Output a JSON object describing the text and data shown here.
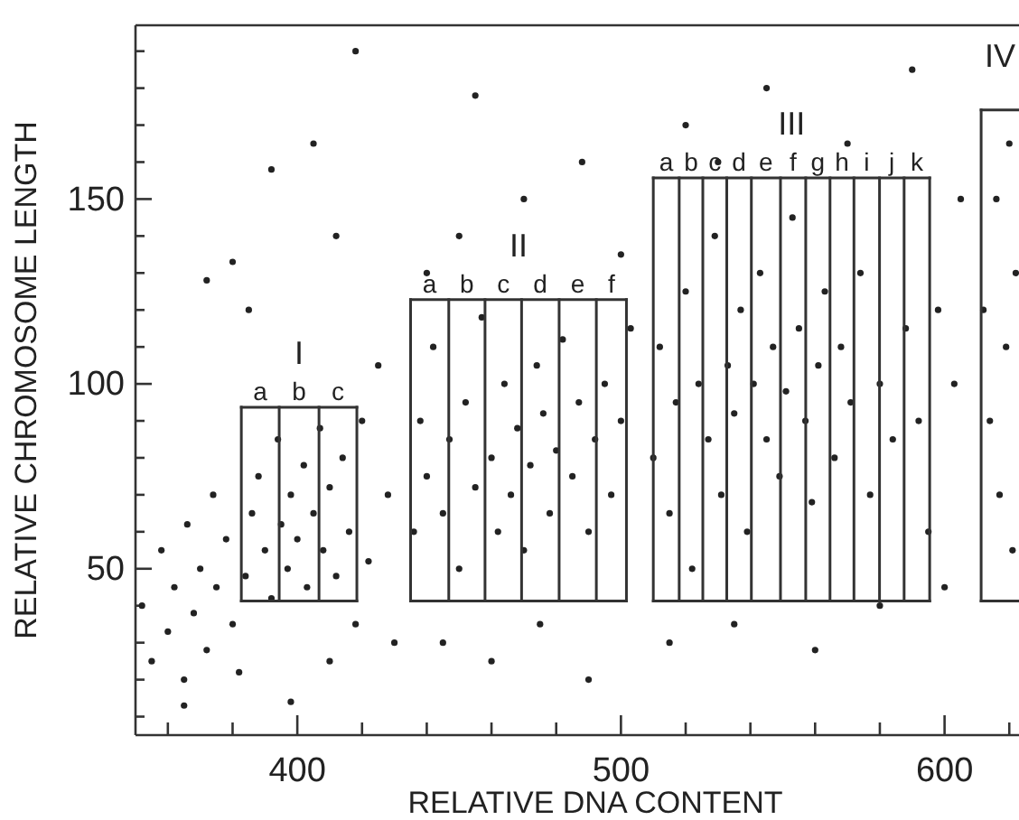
{
  "chart_data": {
    "type": "scatter",
    "xlabel": "RELATIVE DNA CONTENT",
    "ylabel": "RELATIVE CHROMOSOME LENGTH",
    "xlim": [
      350,
      623
    ],
    "ylim": [
      5,
      197
    ],
    "xticks": [
      {
        "value": 360,
        "label": null
      },
      {
        "value": 380,
        "label": null
      },
      400,
      {
        "value": 420,
        "label": null
      },
      {
        "value": 440,
        "label": null
      },
      {
        "value": 460,
        "label": null
      },
      {
        "value": 480,
        "label": null
      },
      500,
      {
        "value": 520,
        "label": null
      },
      {
        "value": 540,
        "label": null
      },
      {
        "value": 560,
        "label": null
      },
      {
        "value": 580,
        "label": null
      },
      600,
      {
        "value": 620,
        "label": null
      }
    ],
    "yticks": [
      {
        "value": 10,
        "label": null
      },
      {
        "value": 20,
        "label": null
      },
      {
        "value": 30,
        "label": null
      },
      {
        "value": 40,
        "label": null
      },
      50,
      {
        "value": 60,
        "label": null
      },
      {
        "value": 70,
        "label": null
      },
      {
        "value": 80,
        "label": null
      },
      {
        "value": 90,
        "label": null
      },
      100,
      {
        "value": 110,
        "label": null
      },
      {
        "value": 120,
        "label": null
      },
      {
        "value": 130,
        "label": null
      },
      {
        "value": 140,
        "label": null
      },
      150,
      {
        "value": 160,
        "label": null
      },
      {
        "value": 170,
        "label": null
      },
      {
        "value": 180,
        "label": null
      },
      {
        "value": 190,
        "label": null
      }
    ],
    "series": [
      {
        "color": "#222222",
        "marker": "circle",
        "x": [
          352,
          355,
          358,
          360,
          362,
          365,
          366,
          368,
          370,
          372,
          374,
          375,
          378,
          380,
          382,
          384,
          386,
          388,
          390,
          392,
          394,
          395,
          397,
          398,
          400,
          402,
          403,
          405,
          407,
          408,
          410,
          412,
          414,
          416,
          418,
          420,
          422,
          425,
          428,
          430,
          385,
          380,
          392,
          405,
          412,
          418,
          372,
          398,
          410,
          365,
          436,
          438,
          440,
          442,
          445,
          447,
          450,
          452,
          455,
          457,
          460,
          462,
          464,
          466,
          468,
          470,
          472,
          474,
          476,
          478,
          480,
          482,
          485,
          487,
          490,
          492,
          495,
          497,
          500,
          503,
          445,
          460,
          475,
          490,
          450,
          470,
          488,
          500,
          455,
          440,
          510,
          512,
          515,
          517,
          520,
          522,
          524,
          527,
          529,
          531,
          533,
          535,
          537,
          539,
          541,
          543,
          545,
          547,
          549,
          551,
          553,
          555,
          557,
          559,
          561,
          563,
          566,
          568,
          571,
          574,
          577,
          580,
          584,
          588,
          592,
          595,
          598,
          603,
          515,
          535,
          560,
          580,
          520,
          545,
          570,
          590,
          605,
          600,
          530,
          612,
          614,
          616,
          617,
          619,
          620,
          621,
          622
        ],
        "values": [
          40,
          25,
          55,
          33,
          45,
          20,
          62,
          38,
          50,
          28,
          70,
          45,
          58,
          35,
          22,
          48,
          65,
          75,
          55,
          42,
          85,
          62,
          50,
          70,
          58,
          78,
          45,
          65,
          88,
          55,
          72,
          48,
          80,
          60,
          35,
          90,
          52,
          105,
          70,
          30,
          120,
          133,
          158,
          165,
          140,
          190,
          128,
          14,
          25,
          13,
          60,
          90,
          75,
          110,
          65,
          85,
          50,
          95,
          72,
          118,
          80,
          60,
          100,
          70,
          88,
          55,
          78,
          105,
          92,
          65,
          82,
          112,
          75,
          95,
          60,
          85,
          100,
          70,
          90,
          115,
          30,
          25,
          35,
          20,
          140,
          150,
          160,
          135,
          178,
          130,
          80,
          110,
          65,
          95,
          125,
          50,
          100,
          85,
          140,
          70,
          105,
          92,
          120,
          60,
          100,
          130,
          85,
          110,
          75,
          98,
          145,
          115,
          90,
          68,
          105,
          125,
          80,
          110,
          95,
          130,
          70,
          100,
          85,
          115,
          90,
          60,
          120,
          100,
          30,
          35,
          28,
          40,
          170,
          180,
          165,
          185,
          150,
          45,
          160,
          120,
          90,
          150,
          70,
          110,
          165,
          55,
          130
        ]
      },
      {
        "type": "line",
        "color": "#333333",
        "x": [
          382.7,
          418.4
        ],
        "values": [
          93.7,
          93.7
        ]
      },
      {
        "type": "line",
        "color": "#333333",
        "x": [
          382.7,
          418.4
        ],
        "values": [
          41.3,
          41.3
        ]
      },
      {
        "type": "line",
        "color": "#333333",
        "x": [
          382.7,
          382.7
        ],
        "values": [
          41.3,
          93.7
        ]
      },
      {
        "type": "line",
        "color": "#333333",
        "x": [
          394.4,
          394.4
        ],
        "values": [
          41.3,
          93.7
        ]
      },
      {
        "type": "line",
        "color": "#333333",
        "x": [
          406.7,
          406.7
        ],
        "values": [
          41.3,
          93.7
        ]
      },
      {
        "type": "line",
        "color": "#333333",
        "x": [
          418.4,
          418.4
        ],
        "values": [
          41.3,
          93.7
        ]
      },
      {
        "type": "line",
        "color": "#333333",
        "x": [
          435,
          501.7
        ],
        "values": [
          122.8,
          122.8
        ]
      },
      {
        "type": "line",
        "color": "#333333",
        "x": [
          435,
          501.7
        ],
        "values": [
          41.3,
          41.3
        ]
      },
      {
        "type": "line",
        "color": "#333333",
        "x": [
          435,
          435
        ],
        "values": [
          41.3,
          122.8
        ]
      },
      {
        "type": "line",
        "color": "#333333",
        "x": [
          446.8,
          446.8
        ],
        "values": [
          41.3,
          122.8
        ]
      },
      {
        "type": "line",
        "color": "#333333",
        "x": [
          458,
          458
        ],
        "values": [
          41.3,
          122.8
        ]
      },
      {
        "type": "line",
        "color": "#333333",
        "x": [
          469.3,
          469.3
        ],
        "values": [
          41.3,
          122.8
        ]
      },
      {
        "type": "line",
        "color": "#333333",
        "x": [
          480.9,
          480.9
        ],
        "values": [
          41.3,
          122.8
        ]
      },
      {
        "type": "line",
        "color": "#333333",
        "x": [
          492.4,
          492.4
        ],
        "values": [
          41.3,
          122.8
        ]
      },
      {
        "type": "line",
        "color": "#333333",
        "x": [
          501.7,
          501.7
        ],
        "values": [
          41.3,
          122.8
        ]
      },
      {
        "type": "line",
        "color": "#333333",
        "x": [
          510,
          595.4
        ],
        "values": [
          155.7,
          155.7
        ]
      },
      {
        "type": "line",
        "color": "#333333",
        "x": [
          510,
          595.4
        ],
        "values": [
          41.3,
          41.3
        ]
      },
      {
        "type": "line",
        "color": "#333333",
        "x": [
          510,
          510
        ],
        "values": [
          41.3,
          155.7
        ]
      },
      {
        "type": "line",
        "color": "#333333",
        "x": [
          518,
          518
        ],
        "values": [
          41.3,
          155.7
        ]
      },
      {
        "type": "line",
        "color": "#333333",
        "x": [
          525.3,
          525.3
        ],
        "values": [
          41.3,
          155.7
        ]
      },
      {
        "type": "line",
        "color": "#333333",
        "x": [
          532.7,
          532.7
        ],
        "values": [
          41.3,
          155.7
        ]
      },
      {
        "type": "line",
        "color": "#333333",
        "x": [
          540.3,
          540.3
        ],
        "values": [
          41.3,
          155.7
        ]
      },
      {
        "type": "line",
        "color": "#333333",
        "x": [
          549.3,
          549.3
        ],
        "values": [
          41.3,
          155.7
        ]
      },
      {
        "type": "line",
        "color": "#333333",
        "x": [
          557.1,
          557.1
        ],
        "values": [
          41.3,
          155.7
        ]
      },
      {
        "type": "line",
        "color": "#333333",
        "x": [
          564.6,
          564.6
        ],
        "values": [
          41.3,
          155.7
        ]
      },
      {
        "type": "line",
        "color": "#333333",
        "x": [
          572,
          572
        ],
        "values": [
          41.3,
          155.7
        ]
      },
      {
        "type": "line",
        "color": "#333333",
        "x": [
          579.9,
          579.9
        ],
        "values": [
          41.3,
          155.7
        ]
      },
      {
        "type": "line",
        "color": "#333333",
        "x": [
          587.5,
          587.5
        ],
        "values": [
          41.3,
          155.7
        ]
      },
      {
        "type": "line",
        "color": "#333333",
        "x": [
          595.4,
          595.4
        ],
        "values": [
          41.3,
          155.7
        ]
      },
      {
        "type": "line",
        "color": "#333333",
        "x": [
          611.3,
          623
        ],
        "values": [
          174.1,
          174.1
        ]
      },
      {
        "type": "line",
        "color": "#333333",
        "x": [
          611.3,
          623
        ],
        "values": [
          41.3,
          41.3
        ]
      },
      {
        "type": "line",
        "color": "#333333",
        "x": [
          611.3,
          611.3
        ],
        "values": [
          41.3,
          174.1
        ]
      }
    ],
    "annotations": [
      "I",
      "a",
      "b",
      "c",
      "II",
      "a",
      "b",
      "c",
      "d",
      "e",
      "f",
      "III",
      "a",
      "b",
      "c",
      "d",
      "e",
      "f",
      "g",
      "h",
      "i",
      "j",
      "k",
      "IV"
    ]
  }
}
